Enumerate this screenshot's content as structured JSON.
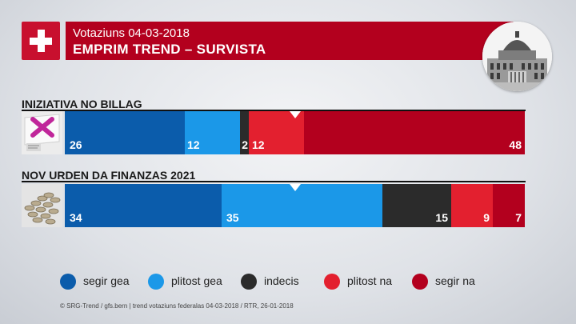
{
  "header": {
    "date_line": "Votaziuns 04-03-2018",
    "title": "EMPRIM TREND – SURVISTA"
  },
  "chart_data": {
    "type": "bar",
    "stacked": true,
    "orientation": "horizontal",
    "categories": [
      "INIZIATIVA NO BILLAG",
      "NOV URDEN DA FINANZAS 2021"
    ],
    "series": [
      {
        "name": "segir gea",
        "color": "#0b5cab",
        "values": [
          26,
          34
        ]
      },
      {
        "name": "plitost gea",
        "color": "#1b98e8",
        "values": [
          12,
          35
        ]
      },
      {
        "name": "indecis",
        "color": "#2b2b2b",
        "values": [
          2,
          15
        ]
      },
      {
        "name": "plitost na",
        "color": "#e3202f",
        "values": [
          12,
          9
        ]
      },
      {
        "name": "segir na",
        "color": "#b3001e",
        "values": [
          48,
          7
        ]
      }
    ],
    "marker": 50,
    "xlim": [
      0,
      100
    ],
    "legend_position": "bottom"
  },
  "footer": "© SRG-Trend / gfs.bern | trend votaziuns federalas 04-03-2018 / RTR, 26-01-2018"
}
